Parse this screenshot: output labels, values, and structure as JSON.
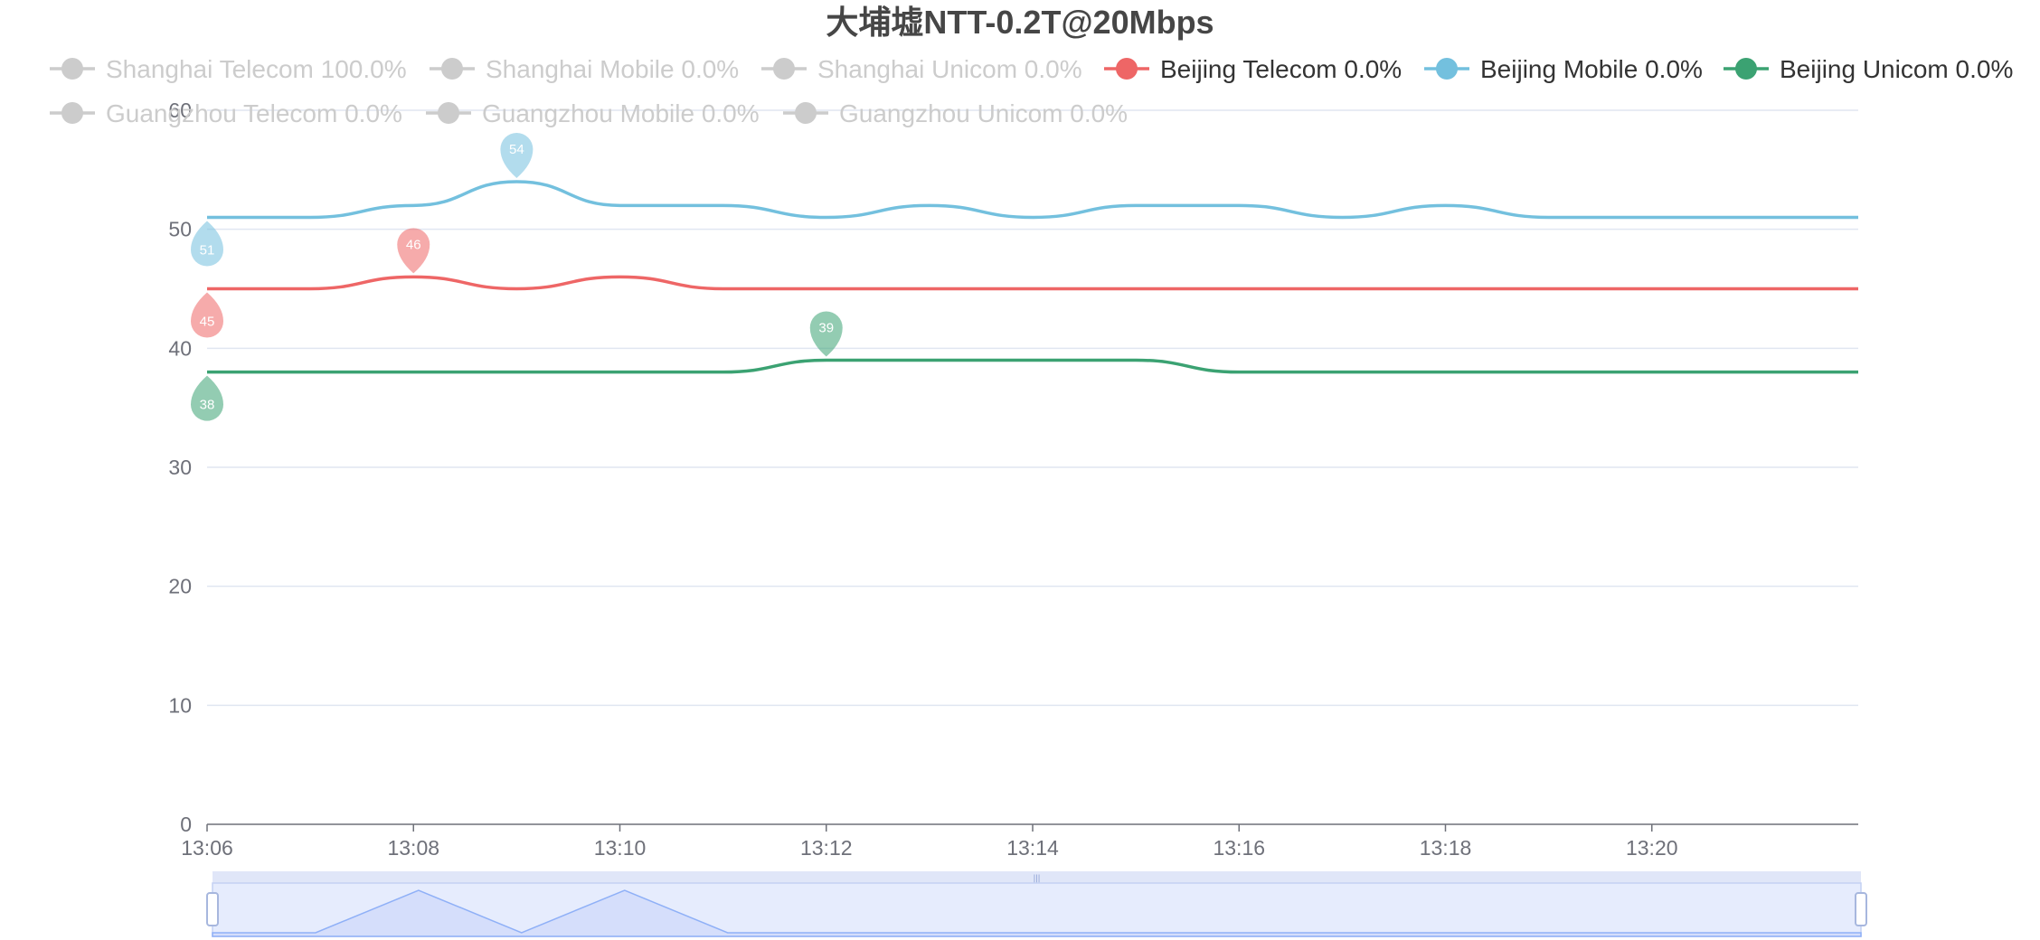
{
  "chart_data": {
    "type": "line",
    "title": "大埔墟NTT-0.2T@20Mbps",
    "x": [
      "13:06",
      "13:07",
      "13:08",
      "13:09",
      "13:10",
      "13:11",
      "13:12",
      "13:13",
      "13:14",
      "13:15",
      "13:16",
      "13:17",
      "13:18",
      "13:19",
      "13:20",
      "13:21",
      "13:22"
    ],
    "x_tick_labels": [
      "13:06",
      "13:08",
      "13:10",
      "13:12",
      "13:14",
      "13:16",
      "13:18",
      "13:20"
    ],
    "ylim": [
      0,
      60
    ],
    "y_ticks": [
      0,
      10,
      20,
      30,
      40,
      50,
      60
    ],
    "grid": true,
    "legend_position": "top",
    "legend": [
      {
        "label": "Shanghai Telecom 100.0%",
        "active": false
      },
      {
        "label": "Shanghai Mobile 0.0%",
        "active": false
      },
      {
        "label": "Shanghai Unicom 0.0%",
        "active": false
      },
      {
        "label": "Beijing Telecom 0.0%",
        "active": true,
        "color": "#ee6666"
      },
      {
        "label": "Beijing Mobile 0.0%",
        "active": true,
        "color": "#73c0de"
      },
      {
        "label": "Beijing Unicom 0.0%",
        "active": true,
        "color": "#3ba272"
      },
      {
        "label": "Guangzhou Telecom 0.0%",
        "active": false
      },
      {
        "label": "Guangzhou Mobile 0.0%",
        "active": false
      },
      {
        "label": "Guangzhou Unicom 0.0%",
        "active": false
      }
    ],
    "series": [
      {
        "name": "Beijing Telecom 0.0%",
        "color": "#ee6666",
        "values": [
          45,
          45,
          46,
          45,
          46,
          45,
          45,
          45,
          45,
          45,
          45,
          45,
          45,
          45,
          45,
          45,
          45
        ],
        "markers": [
          {
            "label": "46",
            "x": "13:08",
            "value": 46,
            "kind": "max"
          },
          {
            "label": "45",
            "x": "13:06",
            "value": 45,
            "kind": "min"
          }
        ]
      },
      {
        "name": "Beijing Mobile 0.0%",
        "color": "#73c0de",
        "values": [
          51,
          51,
          52,
          54,
          52,
          52,
          51,
          52,
          51,
          52,
          52,
          51,
          52,
          51,
          51,
          51,
          51
        ],
        "markers": [
          {
            "label": "54",
            "x": "13:09",
            "value": 54,
            "kind": "max"
          },
          {
            "label": "51",
            "x": "13:06",
            "value": 51,
            "kind": "min"
          }
        ]
      },
      {
        "name": "Beijing Unicom 0.0%",
        "color": "#3ba272",
        "values": [
          38,
          38,
          38,
          38,
          38,
          38,
          39,
          39,
          39,
          39,
          38,
          38,
          38,
          38,
          38,
          38,
          38
        ],
        "markers": [
          {
            "label": "39",
            "x": "13:12",
            "value": 39,
            "kind": "max"
          },
          {
            "label": "38",
            "x": "13:06",
            "value": 38,
            "kind": "min"
          }
        ]
      }
    ],
    "data_zoom": {
      "start_percent": 0,
      "end_percent": 100
    }
  },
  "colors": {
    "inactive": "#cccccc",
    "text": "#333333",
    "grid": "#e0e6f1",
    "axis": "#6e7079",
    "zoom_fill": "#d5defb",
    "zoom_line": "#8fb0f7"
  }
}
